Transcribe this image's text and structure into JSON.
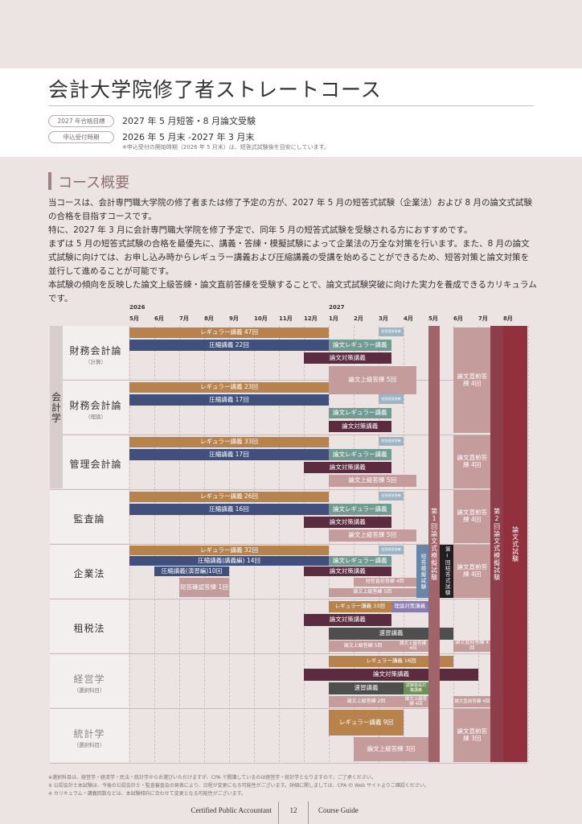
{
  "header": {
    "title": "会計大学院修了者ストレートコース",
    "rows": [
      {
        "label": "2027 年合格目標",
        "text": "2027 年 5 月短答・8 月論文受験"
      },
      {
        "label": "申込受付時期",
        "text": "2026 年 5 月末 -2027 年 3 月末"
      }
    ],
    "note": "※申込受付の開始時期（2026 年 5 月末）は、短答式試験後を目安にしています。"
  },
  "overview": {
    "heading": "コース概要",
    "paragraphs": [
      "当コースは、会計専門職大学院の修了者または修了予定の方が、2027 年 5 月の短答式試験（企業法）および 8 月の論文式試験の合格を目指すコースです。",
      "特に、2027 年 3 月に会計専門職大学院を修了予定で、同年 5 月の短答式試験を受験される方におすすめです。",
      "まずは 5 月の短答式試験の合格を最優先に、講義・答練・模擬試験によって企業法の万全な対策を行います。また、8 月の論文式試験に向けては、お申し込み時からレギュラー講義および圧縮講義の受講を始めることができるため、短答対策と論文対策を並行して進めることが可能です。",
      "本試験の傾向を反映した論文上級答練・論文直前答練を受験することで、論文式試験突破に向けた実力を養成できるカリキュラムです。"
    ]
  },
  "schedule": {
    "years": [
      "2026",
      "2027"
    ],
    "months": [
      "5月",
      "6月",
      "7月",
      "8月",
      "9月",
      "10月",
      "11月",
      "12月",
      "1月",
      "2月",
      "3月",
      "4月",
      "5月",
      "6月",
      "7月",
      "8月"
    ],
    "group": "会計学",
    "columns": [
      "第1回論文式模擬試験",
      "第2回論文式模擬試験",
      "論文式試験"
    ],
    "subjects": [
      {
        "name": "財務会計論",
        "sub": "（計算）",
        "bars": [
          "レギュラー講義 47回",
          "圧縮講義 22回",
          "短答直前答練",
          "論文レギュラー講義",
          "論文対策講義",
          "論文上級答練 5回",
          "論文直前答練 4回"
        ]
      },
      {
        "name": "財務会計論",
        "sub": "（理論）",
        "bars": [
          "レギュラー講義 23回",
          "圧縮講義 17回",
          "短答直前答練",
          "論文レギュラー講義",
          "論文対策講義"
        ]
      },
      {
        "name": "管理会計論",
        "bars": [
          "レギュラー講義 33回",
          "圧縮講義 17回",
          "短答直前答練",
          "論文レギュラー講義",
          "論文対策講義",
          "論文上級答練 5回",
          "論文直前答練 4回"
        ]
      },
      {
        "name": "監査論",
        "bars": [
          "レギュラー講義 26回",
          "圧縮講義 16回",
          "短答直前答練",
          "論文レギュラー講義",
          "論文対策講義",
          "論文上級答練 5回",
          "論文直前答練 4回"
        ]
      },
      {
        "name": "企業法",
        "bars": [
          "レギュラー講義 32回",
          "圧縮講義(講義編) 14回",
          "圧縮講義(演習編)10回",
          "短答確認答練 1回",
          "短答直前答練",
          "論文レギュラー講義",
          "論文対策講義",
          "短答直前答練 4回",
          "論文上級答練 5回",
          "短答模擬試験",
          "第Ⅰ回短答式試験",
          "論文直前答練 4回"
        ]
      },
      {
        "name": "租税法",
        "bars": [
          "レギュラー講義 33回",
          "理論対策講義",
          "論文対策講義",
          "速習講義",
          "論文上級答練 5回",
          "論文上級答練 4回",
          "論文直前答練 4回"
        ]
      },
      {
        "name": "経営学",
        "sub": "（選択科目）",
        "bars": [
          "レギュラー講義 16回",
          "論文対策講義",
          "速習講義",
          "試験委員対策講義",
          "論文上級答練 2回",
          "論文上級答練 4回",
          "論文直前答練 4回"
        ]
      },
      {
        "name": "統計学",
        "sub": "（選択科目）",
        "bars": [
          "レギュラー講義 9回",
          "論文上級答練 3回",
          "論文直前答練 3回"
        ]
      }
    ]
  },
  "footnotes": [
    "※選択科目は、経営学・経済学・民法・統計学からお選びいただけますが、CPA で開講しているのは経営学・統計学となりますので、ご了承ください。",
    "※ 公認会計士本試験は、今後の公認会計士・監査審査会の発表により、日程が変更になる可能性がございます。詳細に関しましては、CPA の Web サイトよりご確認ください。",
    "※ カリキュラム・講義回数などは、本試験傾向に合わせて変更となる可能性がございます。"
  ],
  "footer": {
    "left": "Certified Public Accountant",
    "page": "12",
    "right": "Course Guide"
  }
}
